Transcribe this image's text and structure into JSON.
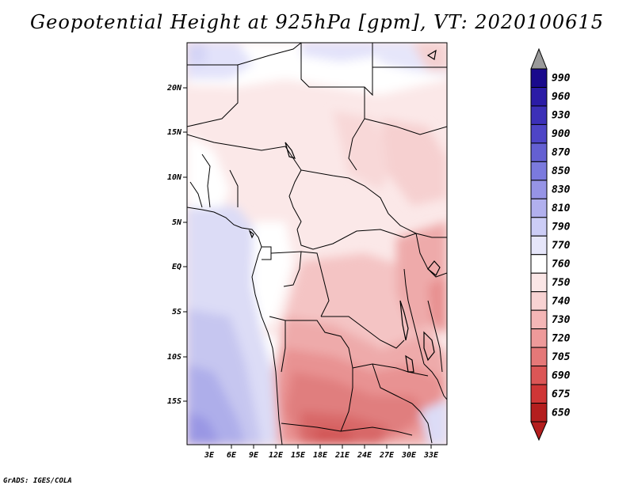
{
  "title": "Geopotential Height at 925hPa [gpm], VT: 2020100615",
  "footer": "GrADS: IGES/COLA",
  "map": {
    "lat_ticks": [
      "20N",
      "15N",
      "10N",
      "5N",
      "EQ",
      "5S",
      "10S",
      "15S"
    ],
    "lon_ticks": [
      "3E",
      "6E",
      "9E",
      "12E",
      "15E",
      "18E",
      "21E",
      "24E",
      "27E",
      "30E",
      "33E"
    ]
  },
  "colorbar": {
    "labels": [
      "990",
      "960",
      "930",
      "900",
      "870",
      "850",
      "830",
      "810",
      "790",
      "770",
      "760",
      "750",
      "740",
      "730",
      "720",
      "705",
      "690",
      "675",
      "650"
    ],
    "colors": [
      "#1a0a8c",
      "#2b1ca6",
      "#3c30b8",
      "#4e45c6",
      "#6460d2",
      "#7b7ade",
      "#9694e6",
      "#b1b0ee",
      "#cccdf6",
      "#e6e6fa",
      "#ffffff",
      "#fbe6e6",
      "#f8d2d2",
      "#f4b6b6",
      "#ee9a9a",
      "#e57878",
      "#dc5656",
      "#cf3636",
      "#b41e1e"
    ],
    "top_triangle_color": "#9a9a9a",
    "bottom_triangle_color": "#b41e1e"
  }
}
